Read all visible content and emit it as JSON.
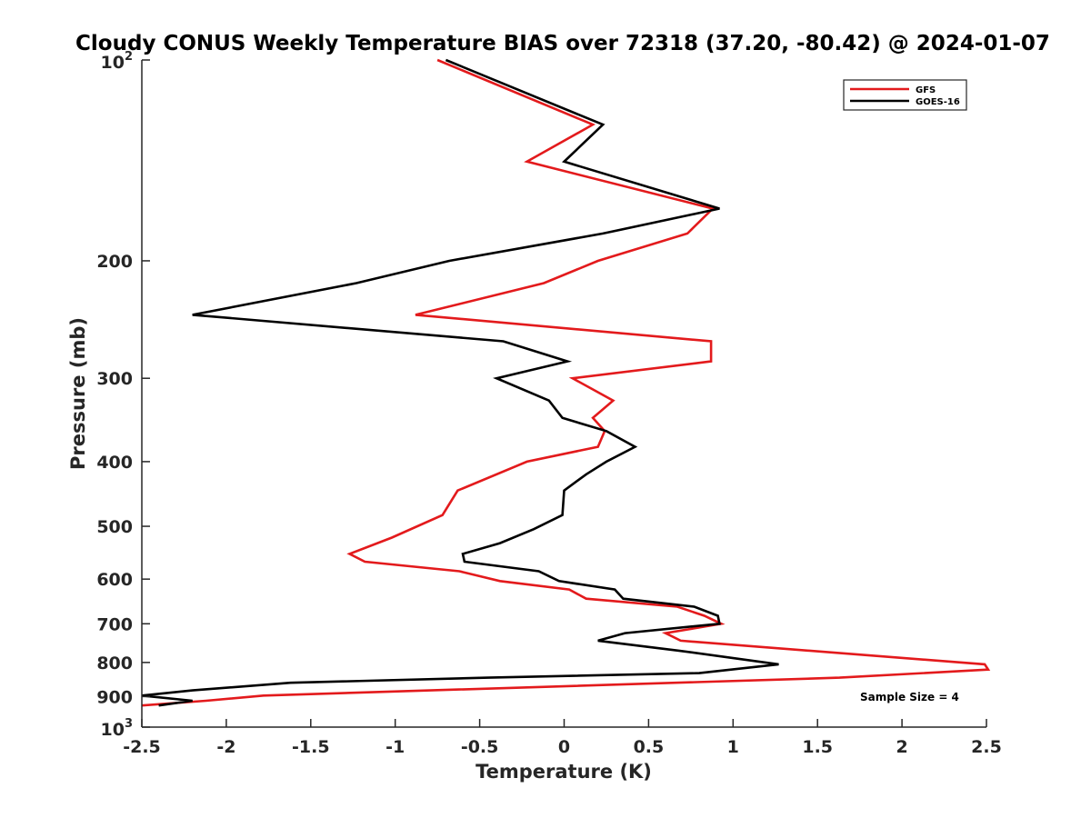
{
  "chart_data": {
    "type": "line",
    "title": "Cloudy CONUS Weekly Temperature BIAS over 72318 (37.20, -80.42) @ 2024-01-07",
    "xlabel": "Temperature (K)",
    "ylabel": "Pressure (mb)",
    "xlim": [
      -2.5,
      2.5
    ],
    "ylim": [
      100,
      1000
    ],
    "yscale": "log",
    "yreversed": true,
    "x_ticks": [
      {
        "value": -2.5,
        "label": "-2.5"
      },
      {
        "value": -2,
        "label": "-2"
      },
      {
        "value": -1.5,
        "label": "-1.5"
      },
      {
        "value": -1,
        "label": "-1"
      },
      {
        "value": -0.5,
        "label": "-0.5"
      },
      {
        "value": 0,
        "label": "0"
      },
      {
        "value": 0.5,
        "label": "0.5"
      },
      {
        "value": 1,
        "label": "1"
      },
      {
        "value": 1.5,
        "label": "1.5"
      },
      {
        "value": 2,
        "label": "2"
      },
      {
        "value": 2.5,
        "label": "2.5"
      }
    ],
    "y_ticks": [
      {
        "value": 100,
        "label": "10",
        "exp": "2"
      },
      {
        "value": 200,
        "label": "200"
      },
      {
        "value": 300,
        "label": "300"
      },
      {
        "value": 400,
        "label": "400"
      },
      {
        "value": 500,
        "label": "500"
      },
      {
        "value": 600,
        "label": "600"
      },
      {
        "value": 700,
        "label": "700"
      },
      {
        "value": 800,
        "label": "800"
      },
      {
        "value": 900,
        "label": "900"
      },
      {
        "value": 1000,
        "label": "10",
        "exp": "3"
      }
    ],
    "legend": {
      "position": "top-right",
      "entries": [
        "GFS",
        "GOES-16"
      ]
    },
    "annotation": "Sample Size = 4",
    "series": [
      {
        "name": "GFS",
        "color": "#e31a1c",
        "points": [
          {
            "x": -0.75,
            "y": 100
          },
          {
            "x": 0.17,
            "y": 125
          },
          {
            "x": -0.22,
            "y": 142
          },
          {
            "x": 0.88,
            "y": 167
          },
          {
            "x": 0.73,
            "y": 182
          },
          {
            "x": 0.2,
            "y": 200
          },
          {
            "x": -0.12,
            "y": 216
          },
          {
            "x": -0.88,
            "y": 241
          },
          {
            "x": 0.87,
            "y": 264
          },
          {
            "x": 0.87,
            "y": 283
          },
          {
            "x": 0.05,
            "y": 300
          },
          {
            "x": 0.29,
            "y": 324
          },
          {
            "x": 0.17,
            "y": 344
          },
          {
            "x": 0.24,
            "y": 360
          },
          {
            "x": 0.2,
            "y": 380
          },
          {
            "x": -0.22,
            "y": 400
          },
          {
            "x": -0.63,
            "y": 442
          },
          {
            "x": -0.72,
            "y": 481
          },
          {
            "x": -1.02,
            "y": 520
          },
          {
            "x": -1.27,
            "y": 550
          },
          {
            "x": -1.18,
            "y": 565
          },
          {
            "x": -0.62,
            "y": 584
          },
          {
            "x": -0.38,
            "y": 604
          },
          {
            "x": 0.03,
            "y": 622
          },
          {
            "x": 0.13,
            "y": 642
          },
          {
            "x": 0.67,
            "y": 660
          },
          {
            "x": 0.83,
            "y": 681
          },
          {
            "x": 0.93,
            "y": 700
          },
          {
            "x": 0.6,
            "y": 723
          },
          {
            "x": 0.69,
            "y": 742
          },
          {
            "x": 2.49,
            "y": 805
          },
          {
            "x": 2.51,
            "y": 820
          },
          {
            "x": 1.63,
            "y": 843
          },
          {
            "x": -1.78,
            "y": 897
          },
          {
            "x": -2.12,
            "y": 913
          },
          {
            "x": -2.5,
            "y": 928
          }
        ]
      },
      {
        "name": "GOES-16",
        "color": "#000000",
        "points": [
          {
            "x": -0.7,
            "y": 100
          },
          {
            "x": 0.23,
            "y": 125
          },
          {
            "x": 0.0,
            "y": 142
          },
          {
            "x": 0.92,
            "y": 167
          },
          {
            "x": 0.23,
            "y": 182
          },
          {
            "x": -0.68,
            "y": 200
          },
          {
            "x": -1.23,
            "y": 216
          },
          {
            "x": -2.2,
            "y": 241
          },
          {
            "x": -0.36,
            "y": 264
          },
          {
            "x": 0.02,
            "y": 283
          },
          {
            "x": -0.4,
            "y": 300
          },
          {
            "x": -0.09,
            "y": 324
          },
          {
            "x": -0.01,
            "y": 344
          },
          {
            "x": 0.25,
            "y": 360
          },
          {
            "x": 0.42,
            "y": 380
          },
          {
            "x": 0.25,
            "y": 400
          },
          {
            "x": 0.13,
            "y": 418
          },
          {
            "x": 0.0,
            "y": 442
          },
          {
            "x": -0.01,
            "y": 481
          },
          {
            "x": -0.18,
            "y": 505
          },
          {
            "x": -0.38,
            "y": 530
          },
          {
            "x": -0.6,
            "y": 550
          },
          {
            "x": -0.59,
            "y": 565
          },
          {
            "x": -0.15,
            "y": 584
          },
          {
            "x": -0.03,
            "y": 604
          },
          {
            "x": 0.3,
            "y": 622
          },
          {
            "x": 0.35,
            "y": 642
          },
          {
            "x": 0.77,
            "y": 660
          },
          {
            "x": 0.91,
            "y": 681
          },
          {
            "x": 0.92,
            "y": 700
          },
          {
            "x": 0.36,
            "y": 723
          },
          {
            "x": 0.2,
            "y": 742
          },
          {
            "x": 0.68,
            "y": 768
          },
          {
            "x": 1.27,
            "y": 805
          },
          {
            "x": 0.8,
            "y": 830
          },
          {
            "x": -0.45,
            "y": 843
          },
          {
            "x": -1.62,
            "y": 858
          },
          {
            "x": -2.2,
            "y": 881
          },
          {
            "x": -2.5,
            "y": 897
          },
          {
            "x": -2.2,
            "y": 913
          },
          {
            "x": -2.4,
            "y": 928
          }
        ]
      }
    ]
  }
}
